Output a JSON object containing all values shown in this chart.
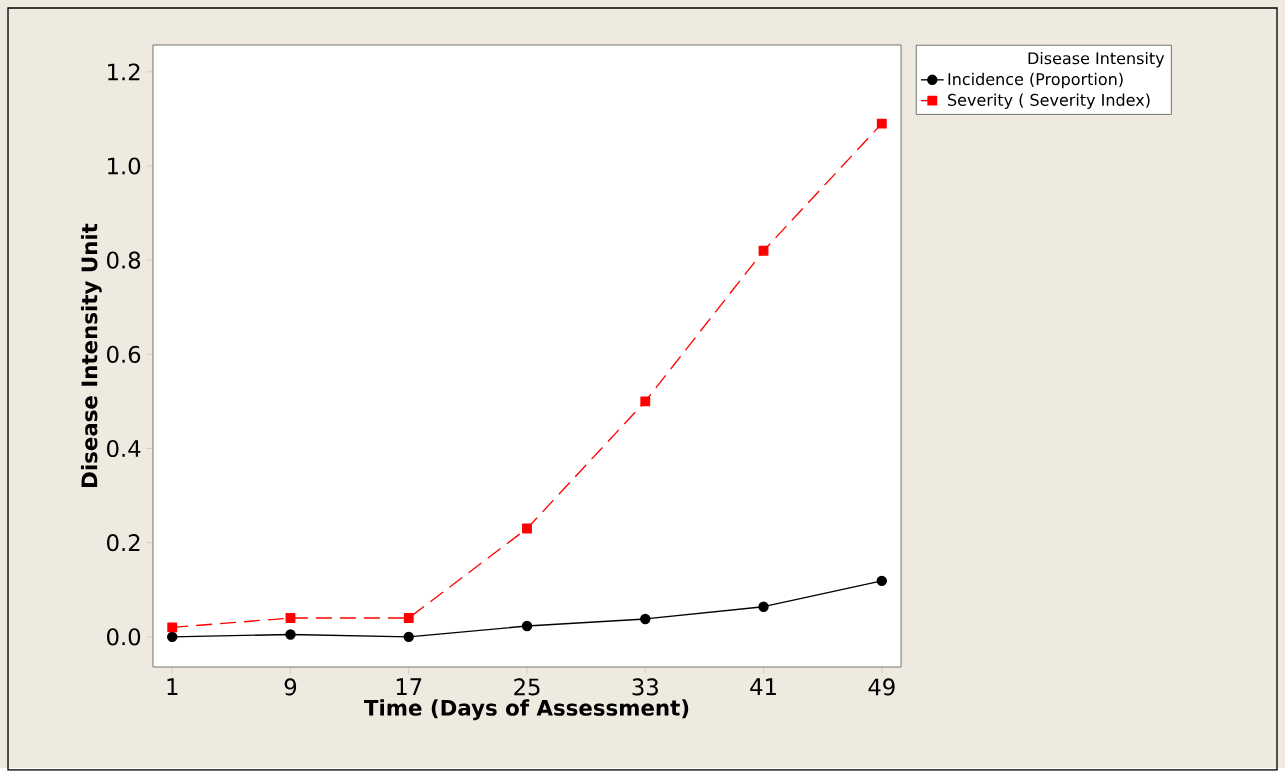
{
  "chart_data": {
    "type": "line",
    "xlabel": "Time (Days of Assessment)",
    "ylabel": "Disease Intensity Unit",
    "legend_title": "Disease Intensity",
    "legend": "top right",
    "x": [
      1,
      9,
      17,
      25,
      33,
      41,
      49
    ],
    "xlim": [
      -0.3,
      50.3
    ],
    "ylim": [
      -0.064,
      1.257
    ],
    "xticks": [
      1,
      9,
      17,
      25,
      33,
      41,
      49
    ],
    "yticks": [
      {
        "value": 0,
        "label": "0.0"
      },
      {
        "value": 0.2,
        "label": "0.2"
      },
      {
        "value": 0.4,
        "label": "0.4"
      },
      {
        "value": 0.6,
        "label": "0.6"
      },
      {
        "value": 0.8,
        "label": "0.8"
      },
      {
        "value": 1.0,
        "label": "1.0"
      },
      {
        "value": 1.2,
        "label": "1.2"
      }
    ],
    "series": [
      {
        "name": "Incidence (Proportion)",
        "color": "#000000",
        "marker": "circle",
        "line_style": "solid",
        "values": [
          0.0,
          0.005,
          0.0,
          0.023,
          0.038,
          0.064,
          0.119
        ]
      },
      {
        "name": "Severity ( Severity Index)",
        "color": "#ff0000",
        "marker": "square",
        "line_style": "dashed",
        "values": [
          0.02,
          0.04,
          0.04,
          0.23,
          0.5,
          0.82,
          1.09
        ]
      }
    ]
  }
}
